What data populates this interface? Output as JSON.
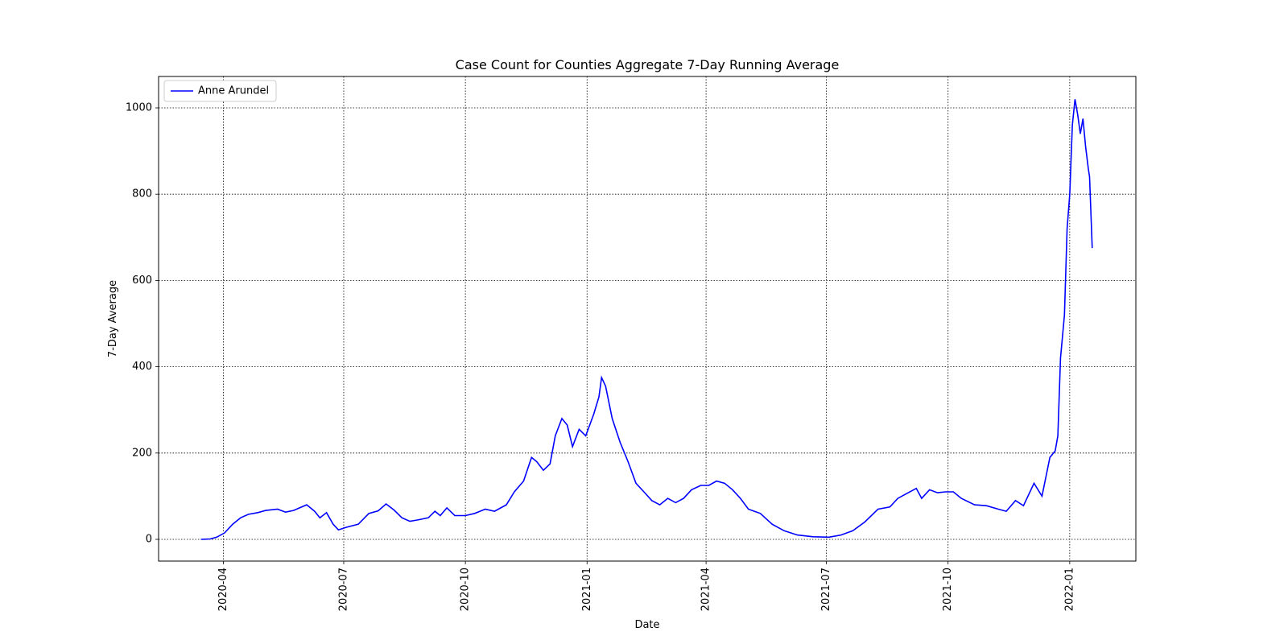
{
  "chart_data": {
    "type": "line",
    "title": "Case Count for Counties Aggregate 7-Day Running Average",
    "x_label": "Date",
    "y_label": "7-Day Average",
    "x": [
      18336,
      18343,
      18348,
      18354,
      18360,
      18366,
      18372,
      18379,
      18385,
      18394,
      18400,
      18406,
      18416,
      18422,
      18426,
      18431,
      18436,
      18440,
      18446,
      18455,
      18463,
      18470,
      18476,
      18482,
      18488,
      18494,
      18500,
      18508,
      18513,
      18517,
      18522,
      18528,
      18536,
      18543,
      18551,
      18558,
      18567,
      18573,
      18580,
      18586,
      18590,
      18595,
      18600,
      18604,
      18609,
      18613,
      18617,
      18622,
      18627,
      18633,
      18637,
      18639,
      18642,
      18647,
      18653,
      18659,
      18665,
      18671,
      18677,
      18683,
      18689,
      18695,
      18701,
      18707,
      18714,
      18720,
      18726,
      18732,
      18738,
      18744,
      18750,
      18759,
      18768,
      18777,
      18787,
      18799,
      18811,
      18820,
      18829,
      18838,
      18848,
      18857,
      18863,
      18869,
      18877,
      18881,
      18887,
      18893,
      18899,
      18905,
      18911,
      18921,
      18930,
      18939,
      18945,
      18952,
      18958,
      18966,
      18972,
      18978,
      18982,
      18984,
      18986,
      18989,
      18991,
      18993,
      18995,
      18997,
      18999,
      19001,
      19003,
      19005,
      19007,
      19008,
      19010
    ],
    "series": [
      {
        "name": "Anne Arundel",
        "color": "#0000ff",
        "values": [
          0,
          1,
          5,
          15,
          35,
          50,
          58,
          62,
          67,
          70,
          63,
          67,
          80,
          65,
          50,
          62,
          35,
          22,
          28,
          35,
          60,
          66,
          82,
          68,
          50,
          42,
          45,
          50,
          65,
          55,
          73,
          55,
          55,
          60,
          70,
          65,
          80,
          110,
          135,
          190,
          180,
          160,
          175,
          240,
          280,
          265,
          215,
          255,
          240,
          290,
          330,
          375,
          355,
          280,
          225,
          180,
          130,
          110,
          90,
          80,
          95,
          85,
          95,
          115,
          125,
          125,
          135,
          130,
          115,
          95,
          70,
          60,
          35,
          20,
          10,
          6,
          5,
          10,
          20,
          40,
          70,
          75,
          95,
          105,
          118,
          95,
          115,
          108,
          110,
          110,
          95,
          80,
          78,
          70,
          65,
          90,
          78,
          130,
          100,
          190,
          205,
          240,
          420,
          520,
          720,
          800,
          960,
          1020,
          985,
          940,
          975,
          910,
          860,
          840,
          675
        ]
      }
    ],
    "xlim": [
      18304,
      19043
    ],
    "xticks": [
      {
        "value": 18353,
        "label": "2020-04"
      },
      {
        "value": 18444,
        "label": "2020-07"
      },
      {
        "value": 18536,
        "label": "2020-10"
      },
      {
        "value": 18628,
        "label": "2021-01"
      },
      {
        "value": 18718,
        "label": "2021-04"
      },
      {
        "value": 18809,
        "label": "2021-07"
      },
      {
        "value": 18901,
        "label": "2021-10"
      },
      {
        "value": 18993,
        "label": "2022-01"
      }
    ],
    "ylim": [
      -50.4,
      1072.8
    ],
    "yticks": [
      0,
      200,
      400,
      600,
      800,
      1000
    ],
    "grid": true,
    "legend": "upper-left"
  }
}
